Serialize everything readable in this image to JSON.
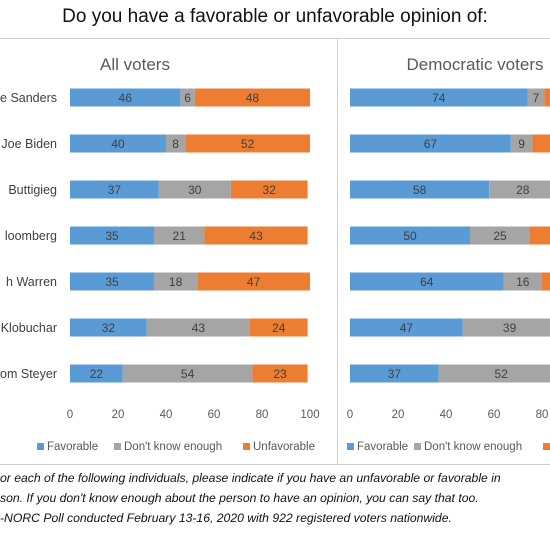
{
  "title": "Do you have a favorable or unfavorable opinion of:",
  "colors": {
    "favorable": "#5b9bd5",
    "dont_know": "#a5a5a5",
    "unfavorable": "#ed7d31"
  },
  "notes": [
    "or each of the following individuals, please indicate if you have an unfavorable or favorable in",
    "son. If you don't know enough about the person to have an opinion, you can say that too.",
    "-NORC Poll conducted February 13-16, 2020 with 922 registered voters nationwide."
  ],
  "chart_data": [
    {
      "type": "bar",
      "orientation": "horizontal",
      "stacked": true,
      "title": "All voters",
      "categories": [
        "e Sanders",
        "Joe Biden",
        "Buttigieg",
        "loomberg",
        "h Warren",
        "Klobuchar",
        "om Steyer"
      ],
      "series": [
        {
          "name": "Favorable",
          "values": [
            46,
            40,
            37,
            35,
            35,
            32,
            22
          ]
        },
        {
          "name": "Don't know enough",
          "values": [
            6,
            8,
            30,
            21,
            18,
            43,
            54
          ]
        },
        {
          "name": "Unfavorable",
          "values": [
            48,
            52,
            32,
            43,
            47,
            24,
            23
          ]
        }
      ],
      "xlim": [
        0,
        100
      ],
      "xticks": [
        0,
        20,
        40,
        60,
        80,
        100
      ],
      "grid": false,
      "legend": "bottom"
    },
    {
      "type": "bar",
      "orientation": "horizontal",
      "stacked": true,
      "title": "Democratic voters",
      "categories": [
        "",
        "",
        "",
        "",
        "",
        "",
        ""
      ],
      "series": [
        {
          "name": "Favorable",
          "values": [
            74,
            67,
            58,
            50,
            64,
            47,
            37
          ]
        },
        {
          "name": "Don't know enough",
          "values": [
            7,
            9,
            28,
            25,
            16,
            39,
            52
          ]
        },
        {
          "name": "Unfavorable",
          "values": [
            null,
            null,
            null,
            null,
            null,
            null,
            null
          ]
        }
      ],
      "xlim": [
        0,
        100
      ],
      "xticks": [
        0,
        20,
        40,
        60,
        80
      ],
      "grid": false,
      "legend": "bottom"
    }
  ]
}
